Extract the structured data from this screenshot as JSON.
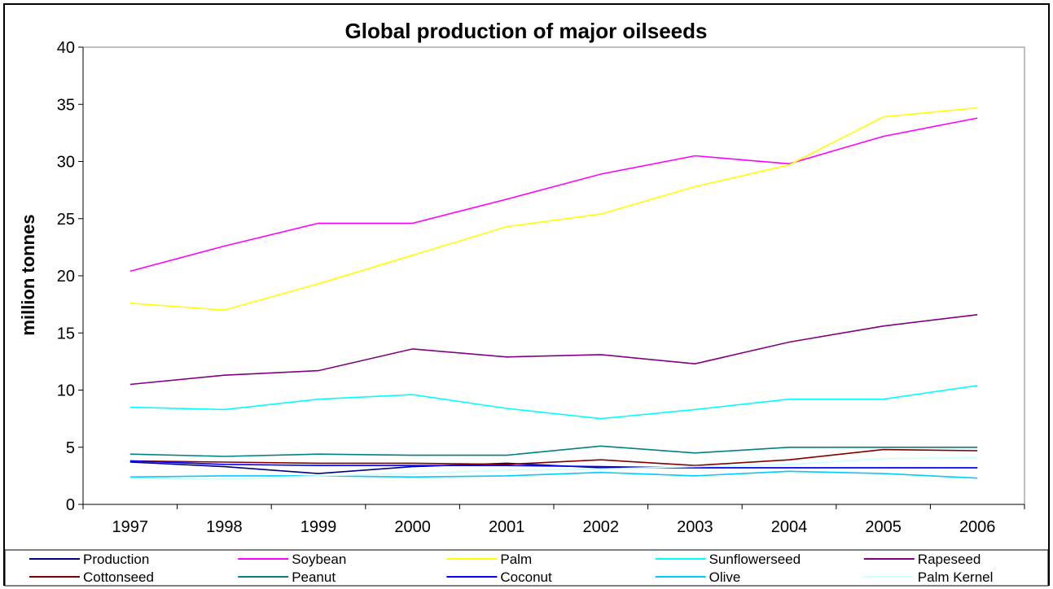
{
  "chart_data": {
    "type": "line",
    "title": "Global production of major oilseeds",
    "xlabel": "",
    "ylabel": "million tonnes",
    "categories": [
      "1997",
      "1998",
      "1999",
      "2000",
      "2001",
      "2002",
      "2003",
      "2004",
      "2005",
      "2006"
    ],
    "ylim": [
      0,
      40
    ],
    "yticks": [
      0,
      5,
      10,
      15,
      20,
      25,
      30,
      35,
      40
    ],
    "grid": false,
    "legend_position": "bottom",
    "series": [
      {
        "name": "Production",
        "color": "#000080",
        "values": [
          3.7,
          3.3,
          2.7,
          3.3,
          3.6,
          3.2,
          3.2,
          3.2,
          3.2,
          3.2
        ]
      },
      {
        "name": "Soybean",
        "color": "#FF00FF",
        "values": [
          20.4,
          22.6,
          24.6,
          24.6,
          26.7,
          28.9,
          30.5,
          29.8,
          32.2,
          33.8
        ]
      },
      {
        "name": "Palm",
        "color": "#FFFF00",
        "values": [
          17.6,
          17.0,
          19.3,
          21.8,
          24.3,
          25.4,
          27.8,
          29.7,
          33.9,
          34.7
        ]
      },
      {
        "name": "Sunflowerseed",
        "color": "#00FFFF",
        "values": [
          8.5,
          8.3,
          9.2,
          9.6,
          8.4,
          7.5,
          8.3,
          9.2,
          9.2,
          10.4
        ]
      },
      {
        "name": "Rapeseed",
        "color": "#800080",
        "values": [
          10.5,
          11.3,
          11.7,
          13.6,
          12.9,
          13.1,
          12.3,
          14.2,
          15.6,
          16.6
        ]
      },
      {
        "name": "Cottonseed",
        "color": "#800000",
        "values": [
          3.8,
          3.7,
          3.6,
          3.6,
          3.5,
          3.9,
          3.4,
          3.9,
          4.8,
          4.7
        ]
      },
      {
        "name": "Peanut",
        "color": "#008080",
        "values": [
          4.4,
          4.2,
          4.4,
          4.3,
          4.3,
          5.1,
          4.5,
          5.0,
          5.0,
          5.0
        ]
      },
      {
        "name": "Coconut",
        "color": "#0000FF",
        "values": [
          3.8,
          3.5,
          3.4,
          3.4,
          3.4,
          3.3,
          3.2,
          3.2,
          3.2,
          3.2
        ]
      },
      {
        "name": "Olive",
        "color": "#00CCFF",
        "values": [
          2.4,
          2.5,
          2.5,
          2.4,
          2.5,
          2.8,
          2.5,
          2.9,
          2.7,
          2.3
        ]
      },
      {
        "name": "Palm Kernel",
        "color": "#CCFFFF",
        "values": [
          2.3,
          2.2,
          2.5,
          2.7,
          3.0,
          3.1,
          3.3,
          3.5,
          4.0,
          4.1
        ]
      }
    ]
  }
}
